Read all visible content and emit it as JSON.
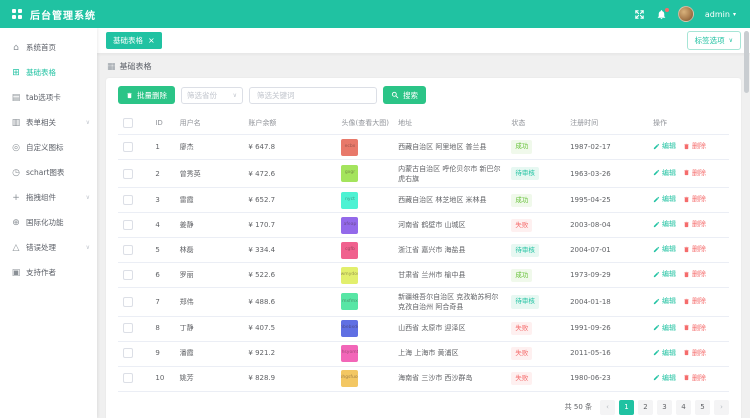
{
  "app": {
    "title": "后台管理系统"
  },
  "header": {
    "user_name": "admin",
    "caret": "▾"
  },
  "colors": {
    "accent": "#20c2a2",
    "button_green": "#2bc487",
    "danger": "#f56c6c",
    "success": "#67c23a"
  },
  "sidebar": {
    "items": [
      {
        "name": "home",
        "icon": "home-icon",
        "glyph": "⌂",
        "label": "系统首页",
        "active": false,
        "children": false
      },
      {
        "name": "basic-table",
        "icon": "table-icon",
        "glyph": "⊞",
        "label": "基础表格",
        "active": true,
        "children": false
      },
      {
        "name": "tabs",
        "icon": "tab-icon",
        "glyph": "▤",
        "label": "tab选项卡",
        "active": false,
        "children": false
      },
      {
        "name": "forms",
        "icon": "form-icon",
        "glyph": "▥",
        "label": "表单相关",
        "active": false,
        "children": true
      },
      {
        "name": "custom-icon",
        "icon": "custom-icon",
        "glyph": "◎",
        "label": "自定义图标",
        "active": false,
        "children": false
      },
      {
        "name": "schart",
        "icon": "chart-icon",
        "glyph": "◷",
        "label": "schart图表",
        "active": false,
        "children": false
      },
      {
        "name": "drag",
        "icon": "drag-icon",
        "glyph": "+",
        "label": "拖拽组件",
        "active": false,
        "children": true
      },
      {
        "name": "i18n",
        "icon": "globe-icon",
        "glyph": "⊕",
        "label": "国际化功能",
        "active": false,
        "children": false
      },
      {
        "name": "error",
        "icon": "warning-icon",
        "glyph": "△",
        "label": "错误处理",
        "active": false,
        "children": true
      },
      {
        "name": "donate",
        "icon": "donate-icon",
        "glyph": "▣",
        "label": "支持作者",
        "active": false,
        "children": false
      }
    ],
    "chevron": "∨"
  },
  "tabs": {
    "active_label": "基础表格",
    "close_glyph": "×",
    "options_label": "标签选项",
    "options_caret": "∨"
  },
  "page": {
    "title": "基础表格"
  },
  "toolbar": {
    "batch_delete_label": "批量删除",
    "province_placeholder": "筛选省份",
    "keyword_placeholder": "筛选关键词",
    "keyword_value": "",
    "search_label": "搜索"
  },
  "table": {
    "columns": [
      "ID",
      "用户名",
      "账户余额",
      "头像(查看大图)",
      "地址",
      "状态",
      "注册时间",
      "操作"
    ],
    "actions": {
      "edit": "编辑",
      "delete": "删除"
    },
    "rows": [
      {
        "id": 1,
        "name": "廖杰",
        "balance": "¥ 647.8",
        "avatar": {
          "color": "#e8796a",
          "text": "ecbx"
        },
        "address": "西藏自治区 阿里地区 普兰县",
        "status": {
          "label": "成功",
          "type": "success"
        },
        "date": "1987-02-17"
      },
      {
        "id": 2,
        "name": "曾秀英",
        "balance": "¥ 472.6",
        "avatar": {
          "color": "#a4e45d",
          "text": "gxgr"
        },
        "address": "内蒙古自治区 呼伦贝尔市 新巴尔虎右旗",
        "status": {
          "label": "待审核",
          "type": "pending"
        },
        "date": "1963-03-26"
      },
      {
        "id": 3,
        "name": "雷霞",
        "balance": "¥ 652.7",
        "avatar": {
          "color": "#4df2d3",
          "text": "nyct"
        },
        "address": "西藏自治区 林芝地区 米林县",
        "status": {
          "label": "成功",
          "type": "success"
        },
        "date": "1995-04-25"
      },
      {
        "id": 4,
        "name": "姜静",
        "balance": "¥ 170.7",
        "avatar": {
          "color": "#9369ea",
          "text": "afeap"
        },
        "address": "河南省 鹤壁市 山城区",
        "status": {
          "label": "失败",
          "type": "fail"
        },
        "date": "2003-08-04"
      },
      {
        "id": 5,
        "name": "林磊",
        "balance": "¥ 334.4",
        "avatar": {
          "color": "#f0618e",
          "text": "cgfb"
        },
        "address": "浙江省 嘉兴市 海盐县",
        "status": {
          "label": "待审核",
          "type": "pending"
        },
        "date": "2004-07-01"
      },
      {
        "id": 6,
        "name": "罗丽",
        "balance": "¥ 522.6",
        "avatar": {
          "color": "#e2ef6d",
          "text": "wmydos"
        },
        "address": "甘肃省 兰州市 榆中县",
        "status": {
          "label": "成功",
          "type": "success"
        },
        "date": "1973-09-29"
      },
      {
        "id": 7,
        "name": "郑伟",
        "balance": "¥ 488.6",
        "avatar": {
          "color": "#57e6a5",
          "text": "mxfmx"
        },
        "address": "新疆维吾尔自治区 克孜勒苏柯尔克孜自治州 阿合奇县",
        "status": {
          "label": "待审核",
          "type": "pending"
        },
        "date": "2004-01-18"
      },
      {
        "id": 8,
        "name": "丁静",
        "balance": "¥ 407.5",
        "avatar": {
          "color": "#5f6fe3",
          "text": "nbebxde"
        },
        "address": "山西省 太原市 迎泽区",
        "status": {
          "label": "失败",
          "type": "fail"
        },
        "date": "1991-09-26"
      },
      {
        "id": 9,
        "name": "潘霞",
        "balance": "¥ 921.2",
        "avatar": {
          "color": "#f266b8",
          "text": "hsyomt"
        },
        "address": "上海 上海市 黄浦区",
        "status": {
          "label": "失败",
          "type": "fail"
        },
        "date": "2011-05-16"
      },
      {
        "id": 10,
        "name": "姚芳",
        "balance": "¥ 828.9",
        "avatar": {
          "color": "#f3c763",
          "text": "ohgsfuoe"
        },
        "address": "海南省 三沙市 西沙群岛",
        "status": {
          "label": "失败",
          "type": "fail"
        },
        "date": "1980-06-23"
      }
    ]
  },
  "pagination": {
    "total_label": "共 50 条",
    "prev_glyph": "‹",
    "next_glyph": "›",
    "pages": [
      "1",
      "2",
      "3",
      "4",
      "5"
    ],
    "active_page": "1"
  }
}
